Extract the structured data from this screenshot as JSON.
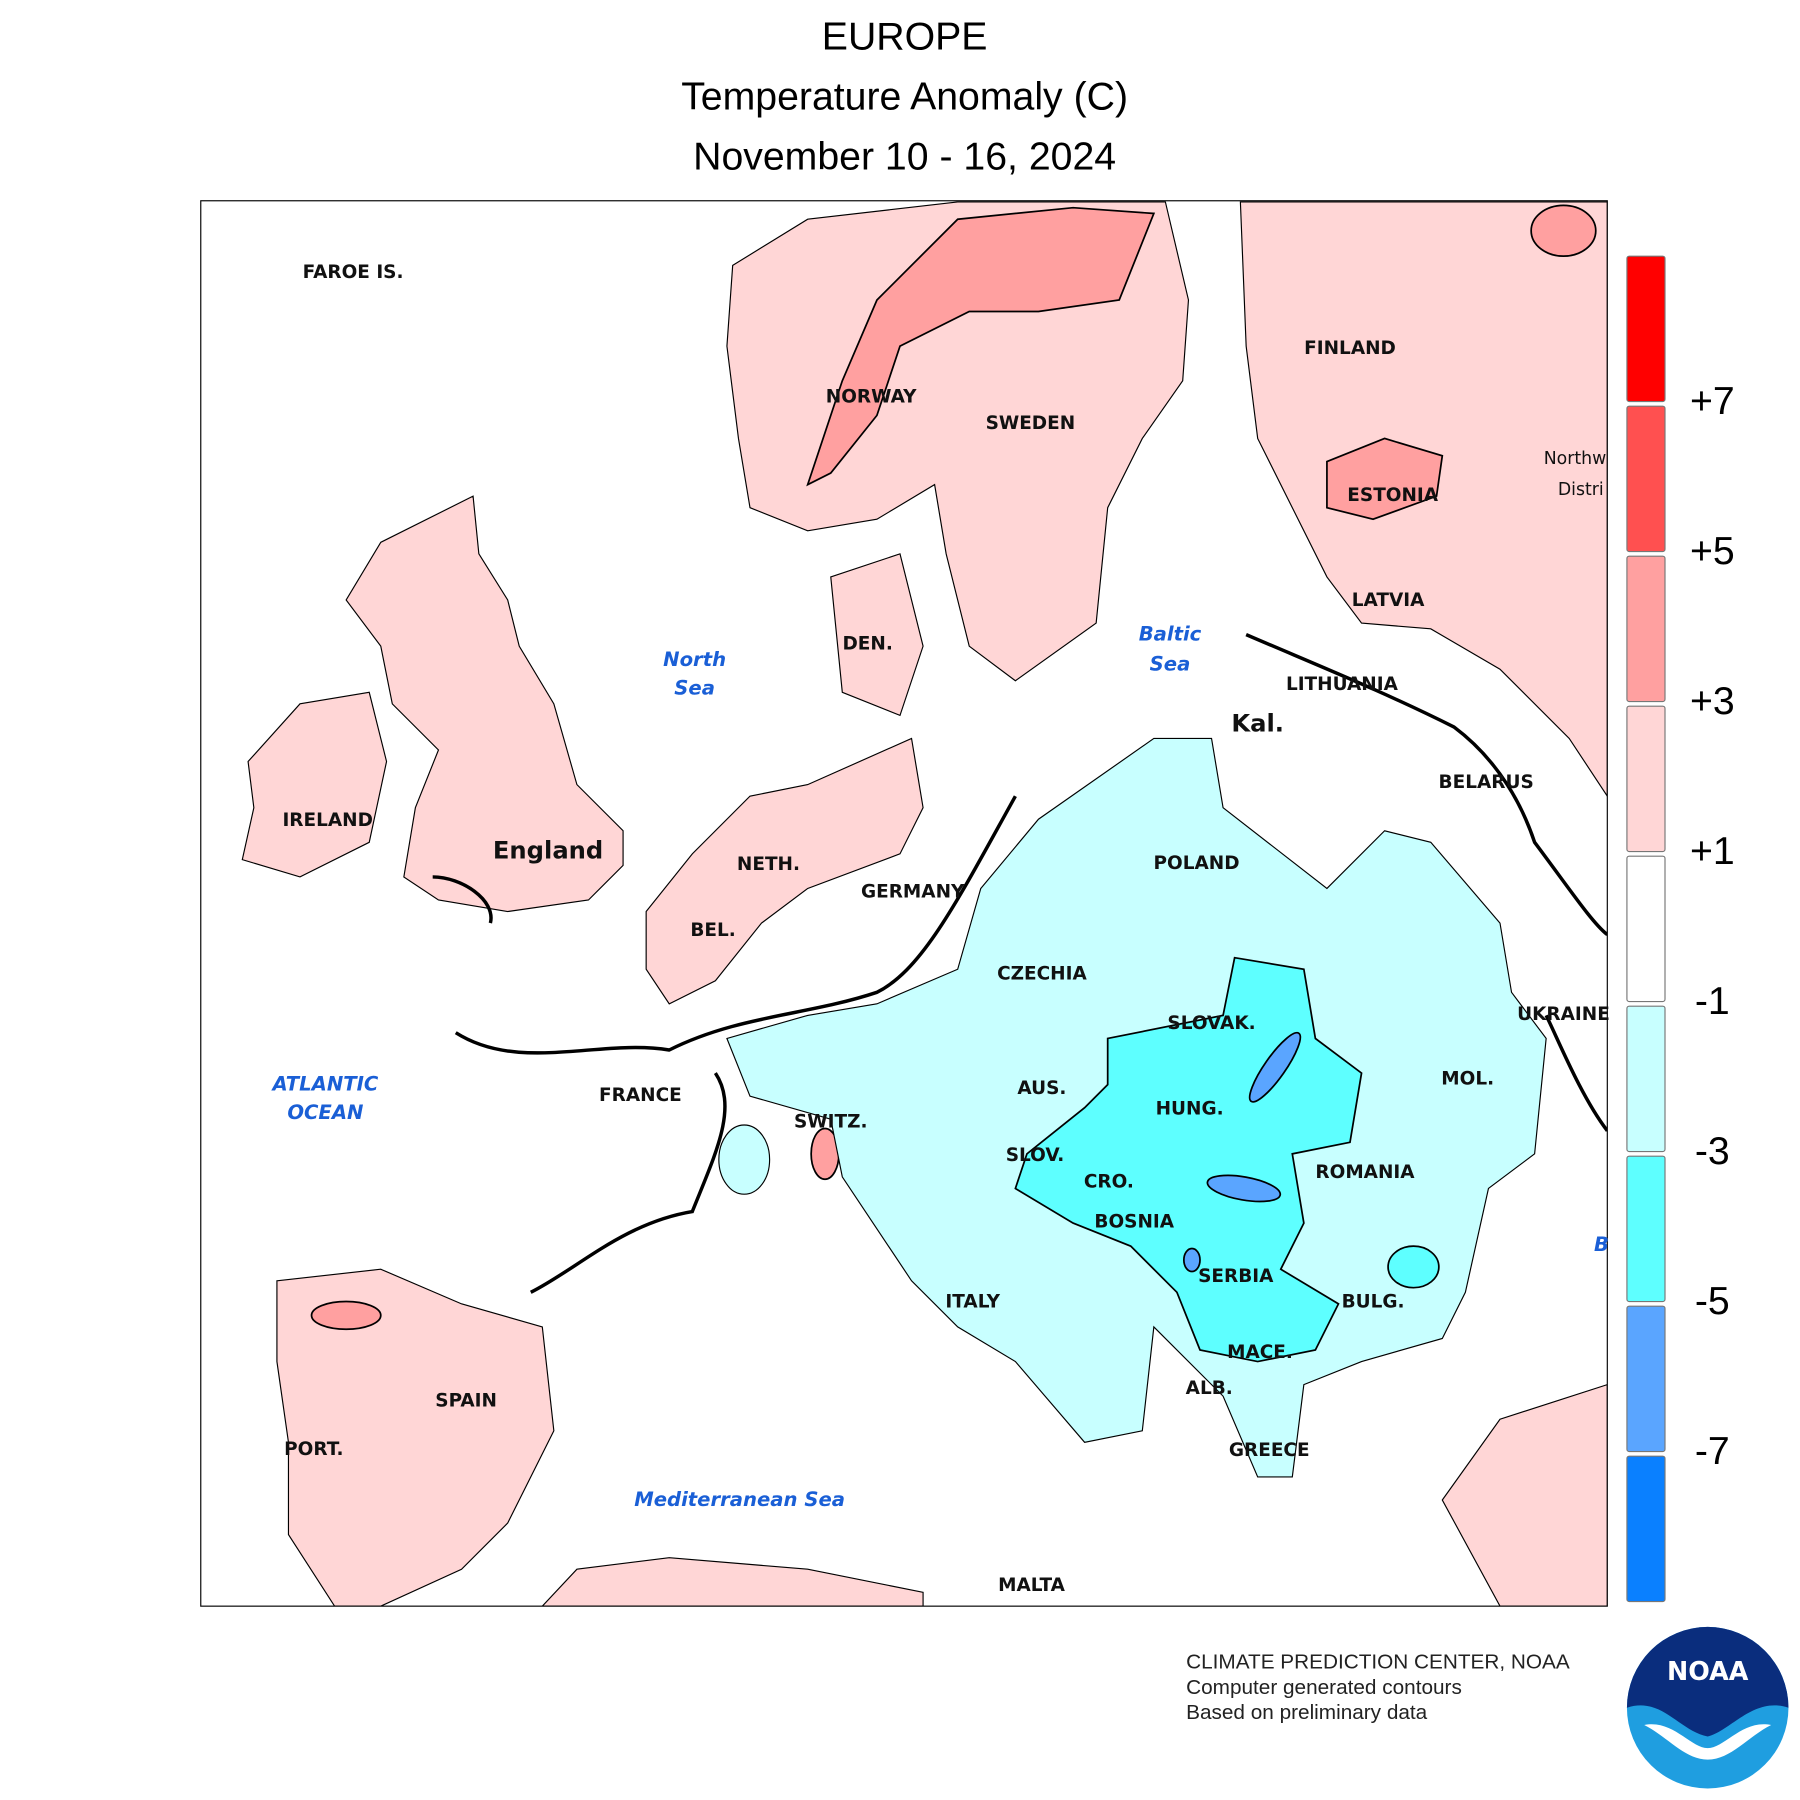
{
  "header": {
    "title": "EUROPE",
    "subtitle": "Temperature Anomaly (C)",
    "period": "November 10 - 16, 2024"
  },
  "map": {
    "countries": [
      "FAROE IS.",
      "FINLAND",
      "NORWAY",
      "SWEDEN",
      "ESTONIA",
      "LATVIA",
      "DEN.",
      "LITHUANIA",
      "Kal.",
      "BELARUS",
      "IRELAND",
      "England",
      "NETH.",
      "POLAND",
      "GERMANY",
      "BEL.",
      "CZECHIA",
      "SLOVAK.",
      "UKRAINE",
      "AUS.",
      "MOL.",
      "FRANCE",
      "SWITZ.",
      "HUNG.",
      "SLOV.",
      "CRO.",
      "ROMANIA",
      "BOSNIA",
      "SERBIA",
      "ITALY",
      "BULG.",
      "MACE.",
      "ALB.",
      "SPAIN",
      "PORT.",
      "GREECE",
      "MALTA",
      "Northw",
      "Distri"
    ],
    "seas": [
      "North",
      "Sea",
      "Baltic",
      "Sea",
      "ATLANTIC",
      "OCEAN",
      "Mediterranean Sea",
      "B"
    ]
  },
  "legend": {
    "colors": [
      "#ff0000",
      "#ff5050",
      "#ffa0a0",
      "#ffd6d6",
      "#ffffff",
      "#c8ffff",
      "#5effff",
      "#5aa5ff",
      "#0a80ff"
    ],
    "ticks": [
      {
        "value": 7,
        "label": "+7"
      },
      {
        "value": 5,
        "label": "+5"
      },
      {
        "value": 3,
        "label": "+3"
      },
      {
        "value": 1,
        "label": "+1"
      },
      {
        "value": -1,
        "label": "-1"
      },
      {
        "value": -3,
        "label": "-3"
      },
      {
        "value": -5,
        "label": "-5"
      },
      {
        "value": -7,
        "label": "-7"
      }
    ]
  },
  "footer": {
    "lines": [
      "CLIMATE PREDICTION CENTER, NOAA",
      "Computer generated contours",
      "Based on preliminary data"
    ],
    "logo": "NOAA"
  }
}
